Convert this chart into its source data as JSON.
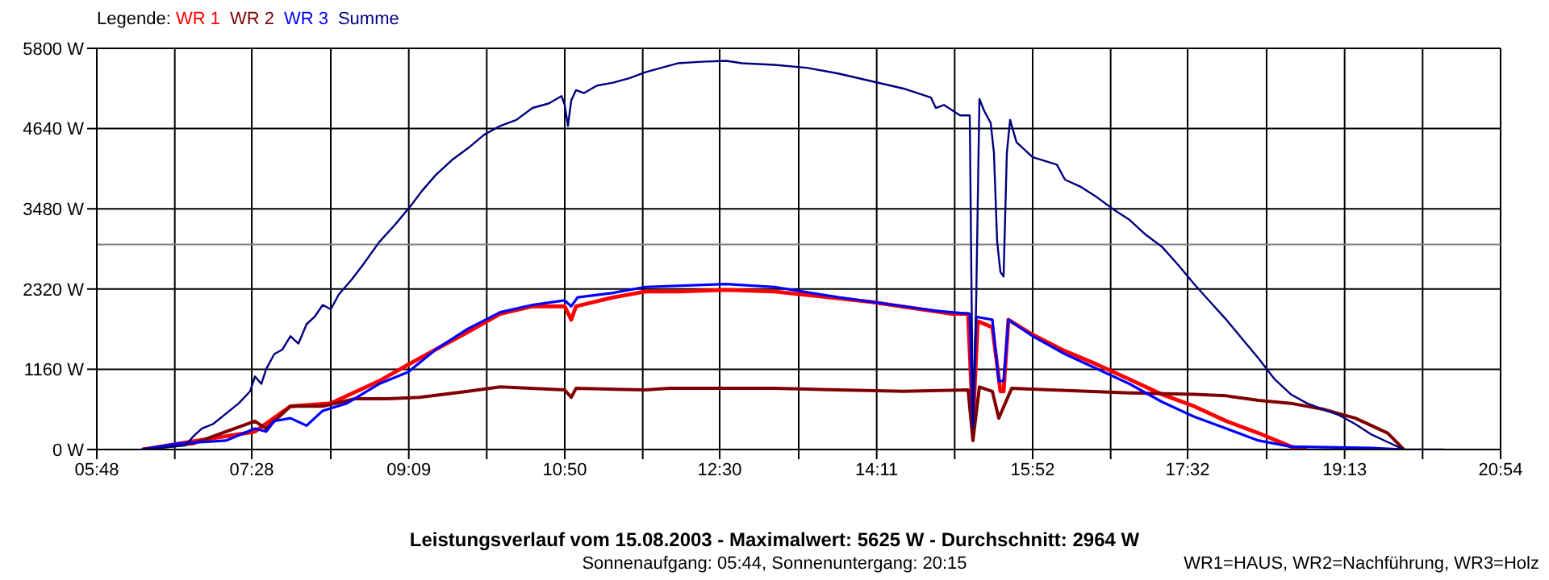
{
  "chart_data": {
    "type": "line",
    "title": "Leistungsverlauf vom 15.08.2003 - Maximalwert: 5625 W - Durchschnitt: 2964 W",
    "subtitle": "Sonnenaufgang: 05:44, Sonnenuntergang: 20:15",
    "legend_title": "Legende:",
    "legend": "top left",
    "grid": true,
    "marker": "none",
    "line_style": "solid",
    "annotations": [
      "WR1=HAUS, WR2=Nachführung, WR3=Holz"
    ],
    "xlim": [
      5.8,
      20.9
    ],
    "ylim": [
      0,
      5800
    ],
    "xticks": [
      {
        "value": 5.8,
        "label": "05:48"
      },
      {
        "value": 6.6389,
        "label": null
      },
      {
        "value": 7.4667,
        "label": "07:28"
      },
      {
        "value": 8.3167,
        "label": null
      },
      {
        "value": 9.1556,
        "label": "09:09"
      },
      {
        "value": 9.9944,
        "label": null
      },
      {
        "value": 10.8333,
        "label": "10:50"
      },
      {
        "value": 11.6722,
        "label": null
      },
      {
        "value": 12.5,
        "label": "12:30"
      },
      {
        "value": 13.35,
        "label": null
      },
      {
        "value": 14.1889,
        "label": "14:11"
      },
      {
        "value": 15.0278,
        "label": null
      },
      {
        "value": 15.8667,
        "label": "15:52"
      },
      {
        "value": 16.7056,
        "label": null
      },
      {
        "value": 17.5333,
        "label": "17:32"
      },
      {
        "value": 18.3833,
        "label": null
      },
      {
        "value": 19.2222,
        "label": "19:13"
      },
      {
        "value": 20.0611,
        "label": null
      },
      {
        "value": 20.9,
        "label": "20:54"
      }
    ],
    "yticks": [
      {
        "value": 0,
        "label": "0 W"
      },
      {
        "value": 1160,
        "label": "1160 W"
      },
      {
        "value": 2320,
        "label": "2320 W"
      },
      {
        "value": 3480,
        "label": "3480 W"
      },
      {
        "value": 4640,
        "label": "4640 W"
      },
      {
        "value": 5800,
        "label": "5800 W"
      }
    ],
    "ref_lines": [
      {
        "axis": "y",
        "value": 2964,
        "color": "#808080"
      }
    ],
    "series": [
      {
        "name": "WR 1",
        "color": "#ff0000",
        "x": [
          6.286,
          7.501,
          7.883,
          8.317,
          8.49,
          8.837,
          9.15,
          9.445,
          9.792,
          10.139,
          10.486,
          10.833,
          10.903,
          10.955,
          11.354,
          11.701,
          12.048,
          12.569,
          13.089,
          14.131,
          15.0,
          15.172,
          15.224,
          15.276,
          15.433,
          15.52,
          15.554,
          15.606,
          15.867,
          16.214,
          16.561,
          16.908,
          17.256,
          17.603,
          17.95,
          18.297,
          18.643,
          18.817
        ],
        "values": [
          0,
          259,
          625,
          668,
          776,
          990,
          1228,
          1445,
          1700,
          1962,
          2070,
          2070,
          1876,
          2070,
          2199,
          2285,
          2285,
          2307,
          2285,
          2134,
          1962,
          1962,
          345,
          1854,
          1768,
          841,
          841,
          1876,
          1660,
          1423,
          1228,
          1014,
          798,
          625,
          410,
          237,
          43,
          0
        ]
      },
      {
        "name": "WR 2",
        "color": "#800000",
        "x": [
          6.286,
          6.841,
          7.188,
          7.501,
          7.622,
          7.883,
          8.23,
          8.577,
          8.924,
          9.271,
          9.792,
          10.139,
          10.833,
          10.903,
          10.955,
          11.701,
          11.961,
          13.089,
          14.478,
          15.172,
          15.224,
          15.294,
          15.433,
          15.502,
          15.606,
          15.641,
          16.908,
          17.603,
          17.95,
          18.297,
          18.643,
          18.991,
          19.338,
          19.685,
          19.859
        ],
        "values": [
          0,
          86,
          259,
          410,
          302,
          625,
          625,
          733,
          733,
          754,
          841,
          905,
          862,
          754,
          884,
          862,
          884,
          884,
          841,
          862,
          129,
          905,
          841,
          453,
          776,
          884,
          819,
          798,
          776,
          711,
          668,
          582,
          453,
          237,
          0
        ]
      },
      {
        "name": "WR 3",
        "color": "#0000ff",
        "x": [
          6.286,
          6.668,
          7.188,
          7.501,
          7.622,
          7.709,
          7.883,
          8.056,
          8.23,
          8.49,
          8.837,
          9.15,
          9.445,
          9.792,
          10.139,
          10.486,
          10.833,
          10.903,
          10.972,
          11.354,
          11.701,
          12.569,
          13.089,
          13.784,
          14.478,
          14.825,
          15.19,
          15.224,
          15.259,
          15.433,
          15.502,
          15.554,
          15.606,
          15.867,
          16.214,
          16.561,
          16.908,
          17.256,
          17.603,
          17.95,
          18.297,
          18.643,
          19.511,
          19.859
        ],
        "values": [
          0,
          86,
          129,
          302,
          259,
          410,
          453,
          345,
          560,
          668,
          949,
          1121,
          1445,
          1746,
          1984,
          2091,
          2156,
          2070,
          2199,
          2264,
          2350,
          2393,
          2350,
          2199,
          2070,
          2005,
          1962,
          345,
          1919,
          1876,
          990,
          990,
          1876,
          1639,
          1380,
          1164,
          949,
          690,
          474,
          302,
          129,
          43,
          22,
          0
        ]
      },
      {
        "name": "Summe",
        "color": "#000080",
        "x": [
          6.286,
          6.633,
          6.755,
          6.841,
          6.928,
          7.049,
          7.188,
          7.327,
          7.449,
          7.501,
          7.57,
          7.622,
          7.709,
          7.796,
          7.883,
          7.969,
          8.056,
          8.143,
          8.23,
          8.317,
          8.403,
          8.542,
          8.664,
          8.837,
          9.011,
          9.184,
          9.306,
          9.445,
          9.618,
          9.792,
          9.965,
          10.139,
          10.313,
          10.486,
          10.66,
          10.799,
          10.833,
          10.868,
          10.903,
          10.955,
          11.041,
          11.18,
          11.354,
          11.527,
          11.701,
          11.874,
          12.048,
          12.308,
          12.569,
          12.742,
          13.089,
          13.436,
          13.784,
          14.131,
          14.478,
          14.773,
          14.825,
          14.912,
          15.086,
          15.19,
          15.224,
          15.259,
          15.294,
          15.346,
          15.415,
          15.45,
          15.485,
          15.52,
          15.554,
          15.589,
          15.624,
          15.693,
          15.867,
          16.127,
          16.214,
          16.388,
          16.561,
          16.735,
          16.908,
          17.082,
          17.256,
          17.429,
          17.603,
          17.776,
          17.95,
          18.123,
          18.297,
          18.471,
          18.643,
          18.817,
          18.991,
          19.164,
          19.338,
          19.511,
          19.685,
          19.859,
          20.292
        ],
        "values": [
          0,
          43,
          60,
          194,
          302,
          367,
          517,
          668,
          841,
          1056,
          949,
          1164,
          1380,
          1445,
          1639,
          1531,
          1811,
          1919,
          2091,
          2027,
          2242,
          2458,
          2673,
          2997,
          3256,
          3536,
          3752,
          3967,
          4183,
          4355,
          4549,
          4679,
          4765,
          4938,
          5002,
          5110,
          4981,
          4679,
          5045,
          5196,
          5153,
          5261,
          5304,
          5368,
          5455,
          5519,
          5584,
          5606,
          5620,
          5584,
          5562,
          5519,
          5433,
          5325,
          5218,
          5088,
          4938,
          4981,
          4830,
          4830,
          302,
          2134,
          5067,
          4894,
          4722,
          4291,
          2997,
          2566,
          2501,
          4291,
          4765,
          4442,
          4226,
          4118,
          3902,
          3795,
          3644,
          3472,
          3321,
          3106,
          2933,
          2673,
          2393,
          2134,
          1876,
          1596,
          1315,
          1014,
          798,
          668,
          582,
          496,
          367,
          216,
          108,
          0,
          0
        ]
      }
    ]
  }
}
